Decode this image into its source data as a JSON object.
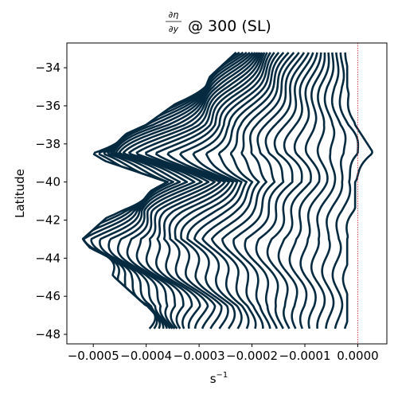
{
  "chart_data": {
    "type": "line",
    "title": {
      "numerator": "∂η",
      "denominator": "∂y",
      "suffix": "@ 300 (SL)"
    },
    "xlabel": "s",
    "xlabel_exponent": "−1",
    "ylabel": "Latitude",
    "xlim": [
      -0.00055,
      5.5e-05
    ],
    "ylim": [
      -48.5,
      -32.7
    ],
    "x_ticks": [
      {
        "value": -0.0005,
        "label": "−0.0005"
      },
      {
        "value": -0.0004,
        "label": "−0.0004"
      },
      {
        "value": -0.0003,
        "label": "−0.0003"
      },
      {
        "value": -0.0002,
        "label": "−0.0002"
      },
      {
        "value": -0.0001,
        "label": "−0.0001"
      },
      {
        "value": 0.0,
        "label": "0.0000"
      }
    ],
    "y_ticks": [
      {
        "value": -34,
        "label": "−34"
      },
      {
        "value": -36,
        "label": "−36"
      },
      {
        "value": -38,
        "label": "−38"
      },
      {
        "value": -40,
        "label": "−40"
      },
      {
        "value": -42,
        "label": "−42"
      },
      {
        "value": -44,
        "label": "−44"
      },
      {
        "value": -46,
        "label": "−46"
      },
      {
        "value": -48,
        "label": "−48"
      }
    ],
    "reference_line": {
      "x": 0.0,
      "color": "#d62728",
      "style": "dotted"
    },
    "line_color": "#062a40",
    "grid": false,
    "legend": "none",
    "latitude_range": [
      -47.7,
      -33.2
    ],
    "num_curves": 32,
    "profile_envelope": {
      "latitude": [
        -33.2,
        -35.0,
        -37.0,
        -38.5,
        -40.0,
        -41.5,
        -43.0,
        -45.0,
        -46.5,
        -47.7
      ],
      "min_value": [
        -0.00023,
        -0.0003,
        -0.0004,
        -0.00052,
        -0.00036,
        -0.00046,
        -0.00052,
        -0.00046,
        -0.0004,
        -0.0004
      ],
      "max_value": [
        -2e-05,
        -2e-05,
        -5e-06,
        3e-05,
        -5e-06,
        -5e-06,
        -2e-05,
        -2e-05,
        -2e-05,
        -2e-05
      ]
    }
  }
}
